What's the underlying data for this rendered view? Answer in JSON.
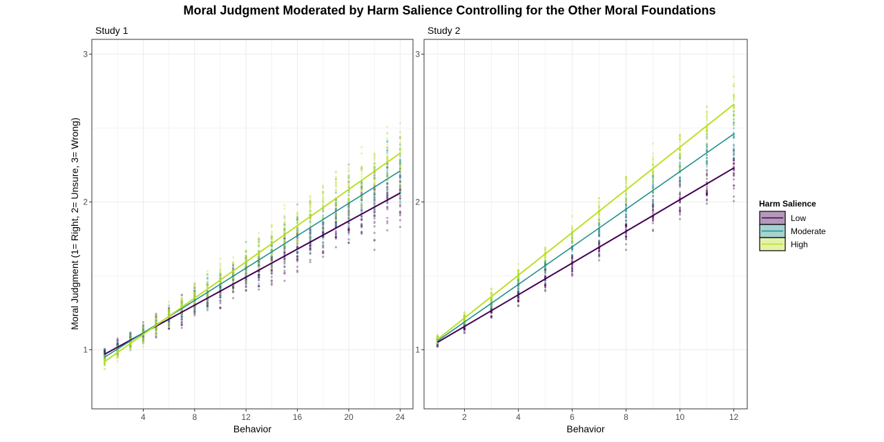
{
  "chart_data": {
    "type": "scatter",
    "title": "Moral Judgment Moderated by Harm Salience Controlling for the Other Moral Foundations",
    "ylabel": "Moral Judgment (1= Right, 2= Unsure, 3= Wrong)",
    "xlabel": "Behavior",
    "grid": true,
    "legend": {
      "title": "Harm Salience",
      "placement": "right",
      "entries": [
        "Low",
        "Moderate",
        "High"
      ]
    },
    "colors": {
      "Low": "#440154",
      "Moderate": "#21908C",
      "High": "#BBDF27"
    },
    "panels": [
      {
        "label": "Study 1",
        "xlim": [
          0,
          25
        ],
        "ylim": [
          0.6,
          3.1
        ],
        "xticks": [
          4,
          8,
          12,
          16,
          20,
          24
        ],
        "yticks": [
          1,
          2,
          3
        ],
        "x_range": [
          1,
          24
        ],
        "lines": [
          {
            "name": "Low",
            "y_start": 0.97,
            "y_end": 2.06
          },
          {
            "name": "Moderate",
            "y_start": 0.95,
            "y_end": 2.21
          },
          {
            "name": "High",
            "y_start": 0.92,
            "y_end": 2.33
          }
        ]
      },
      {
        "label": "Study 2",
        "xlim": [
          0.5,
          12.5
        ],
        "ylim": [
          0.6,
          3.1
        ],
        "xticks": [
          2,
          4,
          6,
          8,
          10,
          12
        ],
        "yticks": [
          1,
          2,
          3
        ],
        "x_range": [
          1,
          12
        ],
        "lines": [
          {
            "name": "Low",
            "y_start": 1.05,
            "y_end": 2.23
          },
          {
            "name": "Moderate",
            "y_start": 1.06,
            "y_end": 2.46
          },
          {
            "name": "High",
            "y_start": 1.07,
            "y_end": 2.66
          }
        ]
      }
    ]
  }
}
